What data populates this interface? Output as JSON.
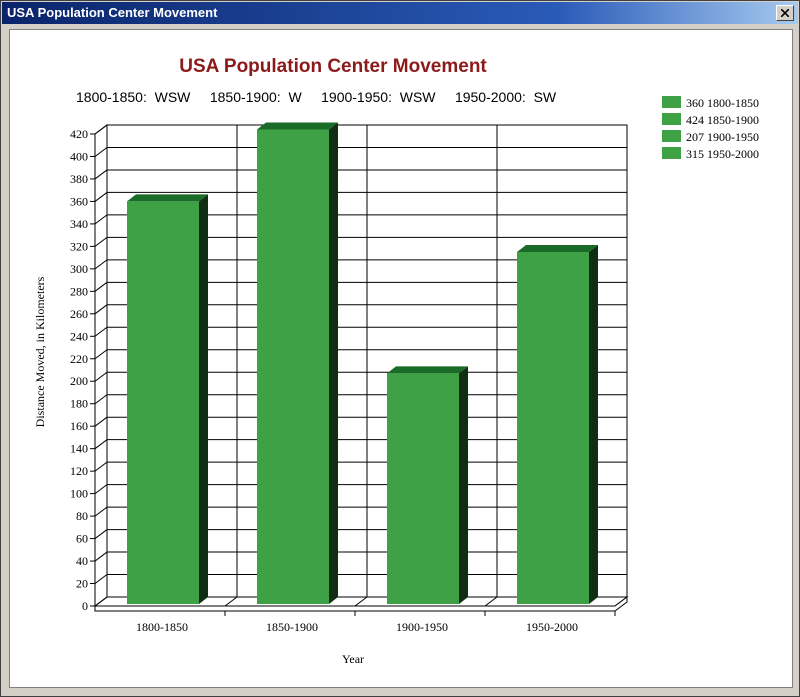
{
  "window": {
    "title": "USA Population Center Movement"
  },
  "chart_data": {
    "type": "bar",
    "title": "USA Population Center Movement",
    "subtitle": "1800-1850:  WSW     1850-1900:  W     1900-1950:  WSW     1950-2000:  SW",
    "categories": [
      "1800-1850",
      "1850-1900",
      "1900-1950",
      "1950-2000"
    ],
    "values": [
      360,
      424,
      207,
      315
    ],
    "xlabel": "Year",
    "ylabel": "Distance Moved, in Kilometers",
    "ylim": [
      0,
      420
    ],
    "ytick_step": 20,
    "grid": true,
    "legend_position": "top-right",
    "legend": [
      "360 1800-1850",
      "424 1850-1900",
      "207 1900-1950",
      "315 1950-2000"
    ],
    "colors": {
      "bar_front": "#3ea146",
      "bar_top": "#1a6b28",
      "bar_side": "#0f2e14",
      "legend_swatch": "#3ea146"
    }
  }
}
